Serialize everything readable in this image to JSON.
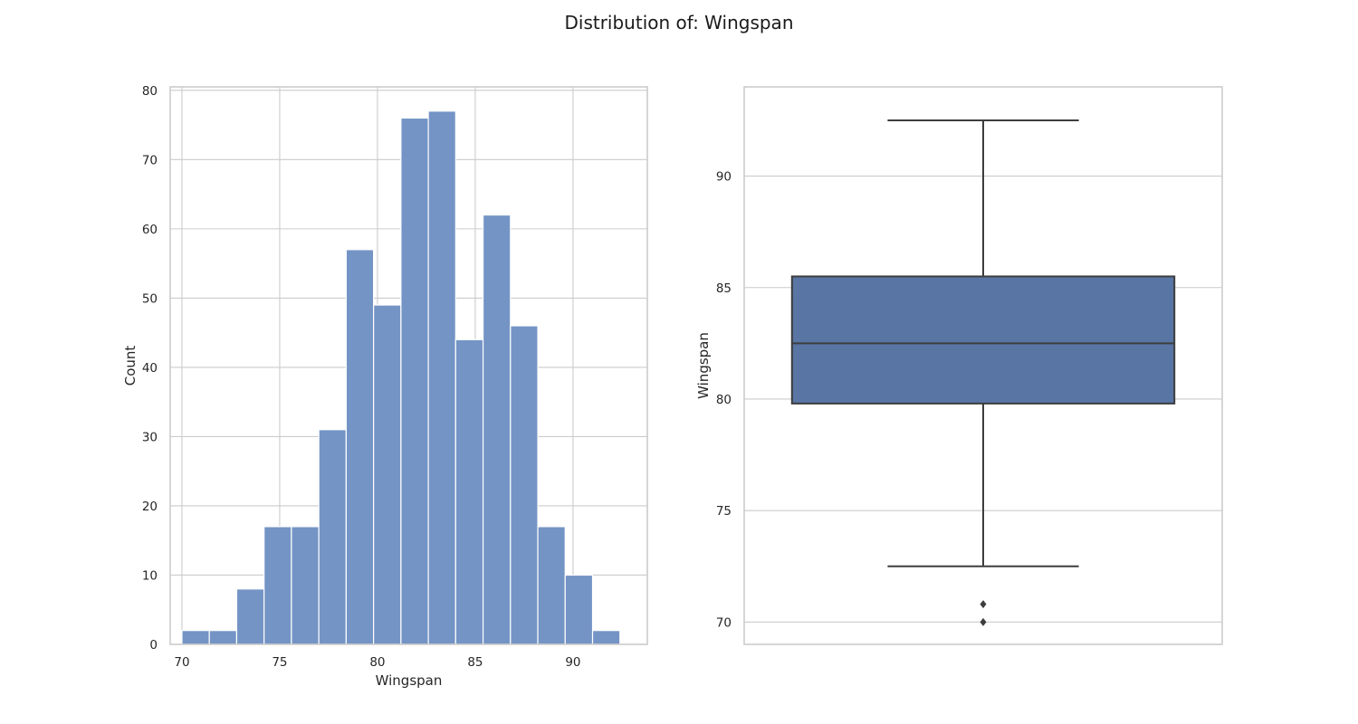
{
  "figure": {
    "title": "Distribution of: Wingspan"
  },
  "colors": {
    "histogram_fill": "#7494c5",
    "histogram_edge": "#ffffff",
    "box_fill": "#5875a4",
    "line": "#3d3d3d",
    "grid": "#cccccc"
  },
  "chart_data": [
    {
      "type": "histogram",
      "xlabel": "Wingspan",
      "ylabel": "Count",
      "xlim": [
        69.4,
        93.8
      ],
      "ylim": [
        0,
        80.5
      ],
      "xticks": [
        70,
        75,
        80,
        85,
        90
      ],
      "yticks": [
        0,
        10,
        20,
        30,
        40,
        50,
        60,
        70,
        80
      ],
      "grid": true,
      "bin_edges": [
        70.0,
        71.4,
        72.8,
        74.2,
        75.6,
        77.0,
        78.4,
        79.8,
        81.2,
        82.6,
        84.0,
        85.4,
        86.8,
        88.2,
        89.6,
        91.0,
        92.4
      ],
      "counts": [
        2,
        2,
        8,
        17,
        17,
        31,
        57,
        49,
        76,
        77,
        44,
        62,
        46,
        17,
        10,
        2
      ]
    },
    {
      "type": "boxplot",
      "ylabel": "Wingspan",
      "xlabel": "",
      "ylim": [
        69.0,
        94.0
      ],
      "yticks": [
        70,
        75,
        80,
        85,
        90
      ],
      "grid": true,
      "whisker_low": 72.5,
      "q1": 79.8,
      "median": 82.5,
      "q3": 85.5,
      "whisker_high": 92.5,
      "outliers": [
        70.0,
        70.8
      ]
    }
  ]
}
